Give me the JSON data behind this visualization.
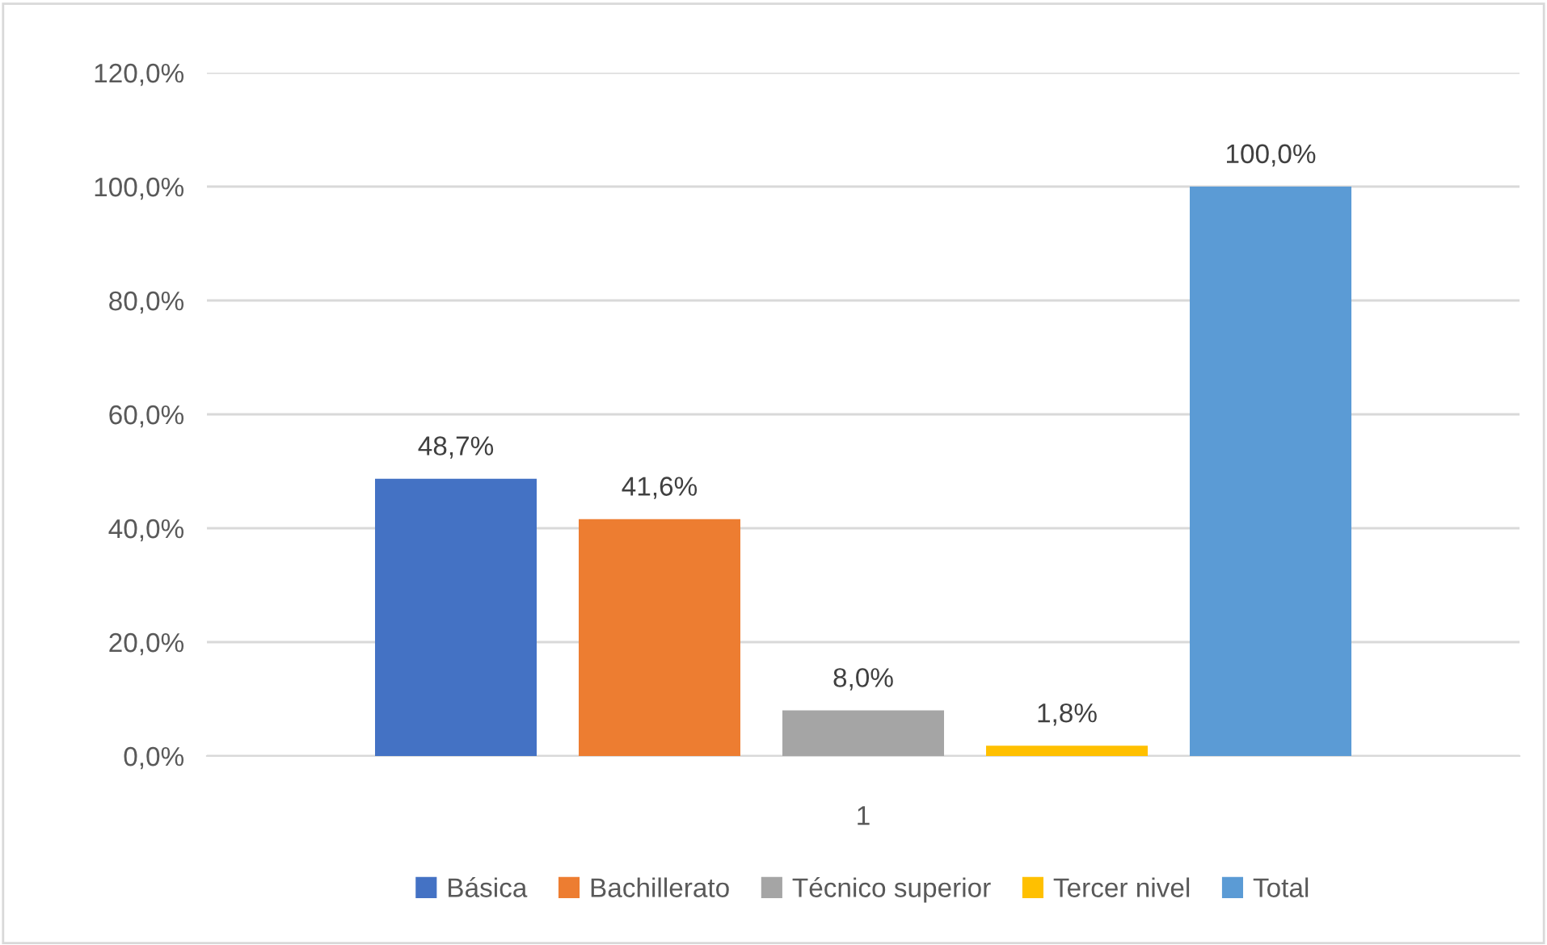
{
  "chart_data": {
    "type": "bar",
    "categories": [
      "1"
    ],
    "series": [
      {
        "name": "Básica",
        "color": "#4472c4",
        "values": [
          48.7
        ],
        "value_labels": [
          "48,7%"
        ]
      },
      {
        "name": "Bachillerato",
        "color": "#ed7d31",
        "values": [
          41.6
        ],
        "value_labels": [
          "41,6%"
        ]
      },
      {
        "name": "Técnico superior",
        "color": "#a5a5a5",
        "values": [
          8.0
        ],
        "value_labels": [
          "8,0%"
        ]
      },
      {
        "name": "Tercer nivel",
        "color": "#ffc000",
        "values": [
          1.8
        ],
        "value_labels": [
          "1,8%"
        ]
      },
      {
        "name": "Total",
        "color": "#5b9bd5",
        "values": [
          100.0
        ],
        "value_labels": [
          "100,0%"
        ]
      }
    ],
    "ylim": [
      0,
      120
    ],
    "yticks": [
      {
        "value": 0,
        "label": "0,0%"
      },
      {
        "value": 20,
        "label": "20,0%"
      },
      {
        "value": 40,
        "label": "40,0%"
      },
      {
        "value": 60,
        "label": "60,0%"
      },
      {
        "value": 80,
        "label": "80,0%"
      },
      {
        "value": 100,
        "label": "100,0%"
      },
      {
        "value": 120,
        "label": "120,0%"
      }
    ],
    "grid": "y",
    "legend": "bottom"
  }
}
